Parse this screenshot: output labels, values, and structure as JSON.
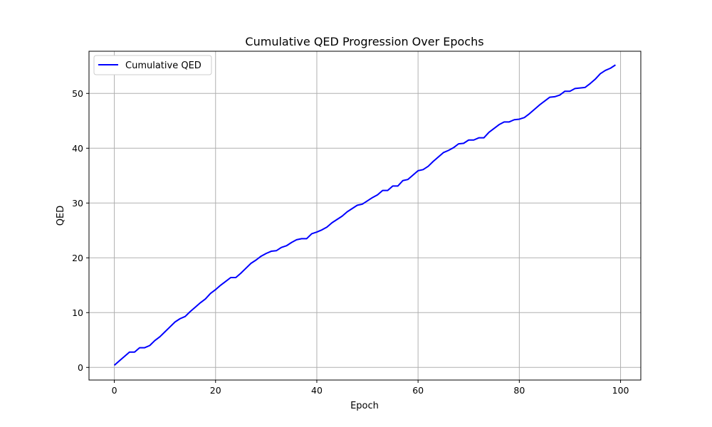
{
  "chart_data": {
    "type": "line",
    "title": "Cumulative QED Progression Over Epochs",
    "xlabel": "Epoch",
    "ylabel": "QED",
    "xlim": [
      -5,
      104
    ],
    "ylim": [
      -2.3,
      57.7
    ],
    "xticks": [
      0,
      20,
      40,
      60,
      80,
      100
    ],
    "yticks": [
      0,
      10,
      20,
      30,
      40,
      50
    ],
    "grid": true,
    "legend_position": "upper-left",
    "series": [
      {
        "name": "Cumulative QED",
        "color": "#0000ff",
        "x": [
          0,
          1,
          2,
          3,
          4,
          5,
          6,
          7,
          8,
          9,
          10,
          11,
          12,
          13,
          14,
          15,
          16,
          17,
          18,
          19,
          20,
          21,
          22,
          23,
          24,
          25,
          26,
          27,
          28,
          29,
          30,
          31,
          32,
          33,
          34,
          35,
          36,
          37,
          38,
          39,
          40,
          41,
          42,
          43,
          44,
          45,
          46,
          47,
          48,
          49,
          50,
          51,
          52,
          53,
          54,
          55,
          56,
          57,
          58,
          59,
          60,
          61,
          62,
          63,
          64,
          65,
          66,
          67,
          68,
          69,
          70,
          71,
          72,
          73,
          74,
          75,
          76,
          77,
          78,
          79,
          80,
          81,
          82,
          83,
          84,
          85,
          86,
          87,
          88,
          89,
          90,
          91,
          92,
          93,
          94,
          95,
          96,
          97,
          98,
          99
        ],
        "y": [
          0.4,
          1.2,
          2.0,
          2.8,
          2.8,
          3.6,
          3.6,
          4.0,
          4.9,
          5.6,
          6.5,
          7.4,
          8.3,
          8.9,
          9.3,
          10.2,
          11.0,
          11.8,
          12.5,
          13.5,
          14.2,
          15.0,
          15.7,
          16.4,
          16.4,
          17.2,
          18.1,
          19.0,
          19.6,
          20.3,
          20.8,
          21.2,
          21.3,
          21.9,
          22.2,
          22.8,
          23.3,
          23.5,
          23.5,
          24.4,
          24.7,
          25.1,
          25.6,
          26.4,
          27.0,
          27.6,
          28.4,
          29.0,
          29.6,
          29.8,
          30.4,
          31.0,
          31.5,
          32.3,
          32.3,
          33.1,
          33.1,
          34.1,
          34.3,
          35.1,
          35.9,
          36.1,
          36.7,
          37.6,
          38.4,
          39.2,
          39.6,
          40.1,
          40.8,
          40.9,
          41.5,
          41.5,
          41.9,
          41.9,
          42.9,
          43.6,
          44.3,
          44.8,
          44.8,
          45.2,
          45.3,
          45.6,
          46.3,
          47.1,
          47.9,
          48.6,
          49.3,
          49.4,
          49.7,
          50.4,
          50.4,
          50.9,
          51.0,
          51.1,
          51.8,
          52.6,
          53.6,
          54.2,
          54.6,
          55.2
        ]
      }
    ]
  }
}
